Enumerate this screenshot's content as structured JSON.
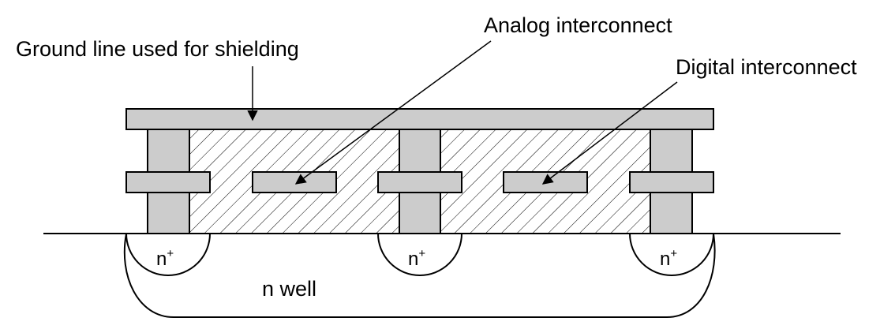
{
  "labels": {
    "ground_line": "Ground line used for shielding",
    "analog": "Analog interconnect",
    "digital": "Digital interconnect",
    "n_well": "n well"
  },
  "n_plus": {
    "base": "n",
    "superscript": "+"
  },
  "colors": {
    "metal_fill": "#cccccc",
    "stroke": "#000000",
    "background": "#ffffff"
  }
}
